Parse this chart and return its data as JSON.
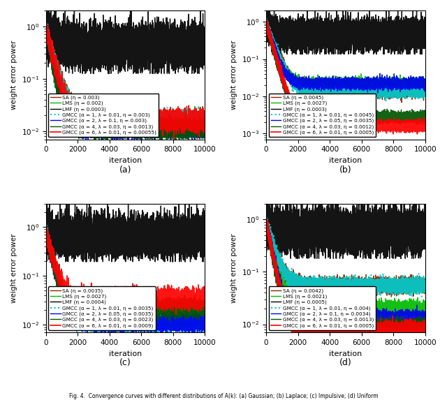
{
  "figure_title": "Fig. 4.  Convergence curves with different distributions of A(k): (a) Gaussian; (b) Laplace; (c) Impulsive; (d) Uniform",
  "subplots": [
    {
      "label": "(a)",
      "ylabel": "weight error power",
      "xlabel": "iteration",
      "ylim": [
        0.007,
        2.0
      ],
      "legend_loc": "center left",
      "curves": [
        {
          "name": "SA (η = 0.003)",
          "color": "#8B2500",
          "ls": "-",
          "lw": 1.0,
          "steady": 0.016,
          "tau": 400,
          "noise": 0.18,
          "init": 0.85,
          "lmf": false
        },
        {
          "name": "LMS (η = 0.002)",
          "color": "#00BB00",
          "ls": "-",
          "lw": 1.0,
          "steady": 0.014,
          "tau": 380,
          "noise": 0.18,
          "init": 0.82,
          "lmf": false
        },
        {
          "name": "LMF (η = 0.0003)",
          "color": "#000000",
          "ls": "-",
          "lw": 1.0,
          "steady": 0.42,
          "tau": 300,
          "noise": 0.55,
          "init": 0.92,
          "lmf": true
        },
        {
          "name": "GMCC (α = 1, λ = 0.01, η = 0.003)",
          "color": "#00CCCC",
          "ls": ":",
          "lw": 1.5,
          "steady": 0.016,
          "tau": 380,
          "noise": 0.18,
          "init": 0.88,
          "lmf": false
        },
        {
          "name": "GMCC (α = 2, λ = 0.1, η = 0.003)",
          "color": "#0000EE",
          "ls": "-",
          "lw": 1.0,
          "steady": 0.011,
          "tau": 300,
          "noise": 0.17,
          "init": 0.87,
          "lmf": false
        },
        {
          "name": "GMCC (α = 4, λ = 0.03, η = 0.0013)",
          "color": "#005500",
          "ls": "-",
          "lw": 1.0,
          "steady": 0.011,
          "tau": 280,
          "noise": 0.17,
          "init": 0.86,
          "lmf": false
        },
        {
          "name": "GMCC (α = 6, λ = 0.01, η = 0.00055)",
          "color": "#FF0000",
          "ls": "-",
          "lw": 1.2,
          "steady": 0.016,
          "tau": 350,
          "noise": 0.2,
          "init": 0.9,
          "lmf": false
        }
      ]
    },
    {
      "label": "(b)",
      "ylabel": "weight error power",
      "xlabel": "iteration",
      "ylim": [
        0.0007,
        2.0
      ],
      "legend_loc": "center left",
      "curves": [
        {
          "name": "SA (η = 0.0045)",
          "color": "#8B2500",
          "ls": "-",
          "lw": 1.0,
          "steady": 0.013,
          "tau": 400,
          "noise": 0.15,
          "init": 0.92,
          "lmf": false
        },
        {
          "name": "LMS (η = 0.0027)",
          "color": "#00BB00",
          "ls": "-",
          "lw": 1.0,
          "steady": 0.022,
          "tau": 350,
          "noise": 0.15,
          "init": 0.9,
          "lmf": false
        },
        {
          "name": "LMF (η = 0.0003)",
          "color": "#000000",
          "ls": "-",
          "lw": 1.0,
          "steady": 0.45,
          "tau": 200,
          "noise": 0.5,
          "init": 0.95,
          "lmf": true
        },
        {
          "name": "GMCC (α = 1, λ = 0.01, η = 0.0045)",
          "color": "#00CCCC",
          "ls": ":",
          "lw": 1.5,
          "steady": 0.013,
          "tau": 380,
          "noise": 0.15,
          "init": 0.92,
          "lmf": false
        },
        {
          "name": "GMCC (α = 2, λ = 0.05, η = 0.0035)",
          "color": "#0000EE",
          "ls": "-",
          "lw": 1.0,
          "steady": 0.022,
          "tau": 320,
          "noise": 0.15,
          "init": 0.9,
          "lmf": false
        },
        {
          "name": "GMCC (α = 4, λ = 0.03, η = 0.0012)",
          "color": "#005500",
          "ls": "-",
          "lw": 1.0,
          "steady": 0.0028,
          "tau": 280,
          "noise": 0.15,
          "init": 0.88,
          "lmf": false
        },
        {
          "name": "GMCC (α = 6, λ = 0.01, η = 0.0005)",
          "color": "#FF0000",
          "ls": "-",
          "lw": 1.2,
          "steady": 0.0016,
          "tau": 300,
          "noise": 0.15,
          "init": 0.93,
          "lmf": false
        }
      ]
    },
    {
      "label": "(c)",
      "ylabel": "weight error power",
      "xlabel": "iteration",
      "ylim": [
        0.007,
        3.0
      ],
      "legend_loc": "center left",
      "curves": [
        {
          "name": "SA (η = 0.0035)",
          "color": "#8B2500",
          "ls": "-",
          "lw": 1.0,
          "steady": 0.013,
          "tau": 350,
          "noise": 0.18,
          "init": 0.8,
          "lmf": false
        },
        {
          "name": "LMS (η = 0.0027)",
          "color": "#00BB00",
          "ls": "-",
          "lw": 1.0,
          "steady": 0.013,
          "tau": 330,
          "noise": 0.18,
          "init": 0.78,
          "lmf": false
        },
        {
          "name": "LMF (η = 0.0004)",
          "color": "#000000",
          "ls": "-",
          "lw": 1.0,
          "steady": 0.65,
          "tau": 150,
          "noise": 0.6,
          "init": 0.88,
          "lmf": true
        },
        {
          "name": "GMCC (α = 1, λ = 0.01, η = 0.0035)",
          "color": "#00CCCC",
          "ls": ":",
          "lw": 1.5,
          "steady": 0.011,
          "tau": 340,
          "noise": 0.18,
          "init": 0.8,
          "lmf": false
        },
        {
          "name": "GMCC (α = 2, λ = 0.05, η = 0.0035)",
          "color": "#0000EE",
          "ls": "-",
          "lw": 1.0,
          "steady": 0.011,
          "tau": 310,
          "noise": 0.17,
          "init": 0.78,
          "lmf": false
        },
        {
          "name": "GMCC (α = 4, λ = 0.03, η = 0.0023)",
          "color": "#005500",
          "ls": "-",
          "lw": 1.0,
          "steady": 0.022,
          "tau": 290,
          "noise": 0.18,
          "init": 0.79,
          "lmf": false
        },
        {
          "name": "GMCC (α = 6, λ = 0.01, η = 0.0009)",
          "color": "#FF0000",
          "ls": "-",
          "lw": 1.2,
          "steady": 0.034,
          "tau": 320,
          "noise": 0.2,
          "init": 0.82,
          "lmf": false
        }
      ]
    },
    {
      "label": "(d)",
      "ylabel": "weight error power",
      "xlabel": "iteration",
      "ylim": [
        0.007,
        2.0
      ],
      "legend_loc": "center right",
      "curves": [
        {
          "name": "SA (η = 0.0042)",
          "color": "#8B2500",
          "ls": "-",
          "lw": 1.0,
          "steady": 0.055,
          "tau": 400,
          "noise": 0.15,
          "init": 0.9,
          "lmf": false
        },
        {
          "name": "LMS (η = 0.0021)",
          "color": "#00BB00",
          "ls": "-",
          "lw": 1.0,
          "steady": 0.02,
          "tau": 350,
          "noise": 0.15,
          "init": 0.88,
          "lmf": false
        },
        {
          "name": "LMF (η = 0.0005)",
          "color": "#000000",
          "ls": "-",
          "lw": 1.0,
          "steady": 0.6,
          "tau": 200,
          "noise": 0.5,
          "init": 0.95,
          "lmf": true
        },
        {
          "name": "GMCC (α = 1, λ = 0.01, η = 0.004)",
          "color": "#00CCCC",
          "ls": ":",
          "lw": 1.5,
          "steady": 0.055,
          "tau": 400,
          "noise": 0.15,
          "init": 0.9,
          "lmf": false
        },
        {
          "name": "GMCC (α = 2, λ = 0.1, η = 0.0034)",
          "color": "#0000EE",
          "ls": "-",
          "lw": 1.0,
          "steady": 0.013,
          "tau": 300,
          "noise": 0.15,
          "init": 0.88,
          "lmf": false
        },
        {
          "name": "GMCC (α = 4, λ = 0.03, η = 0.0013)",
          "color": "#005500",
          "ls": "-",
          "lw": 1.0,
          "steady": 0.009,
          "tau": 270,
          "noise": 0.15,
          "init": 0.86,
          "lmf": false
        },
        {
          "name": "GMCC (α = 6, λ = 0.01, η = 0.0005)",
          "color": "#FF0000",
          "ls": "-",
          "lw": 1.2,
          "steady": 0.008,
          "tau": 290,
          "noise": 0.15,
          "init": 0.9,
          "lmf": false
        }
      ]
    }
  ]
}
